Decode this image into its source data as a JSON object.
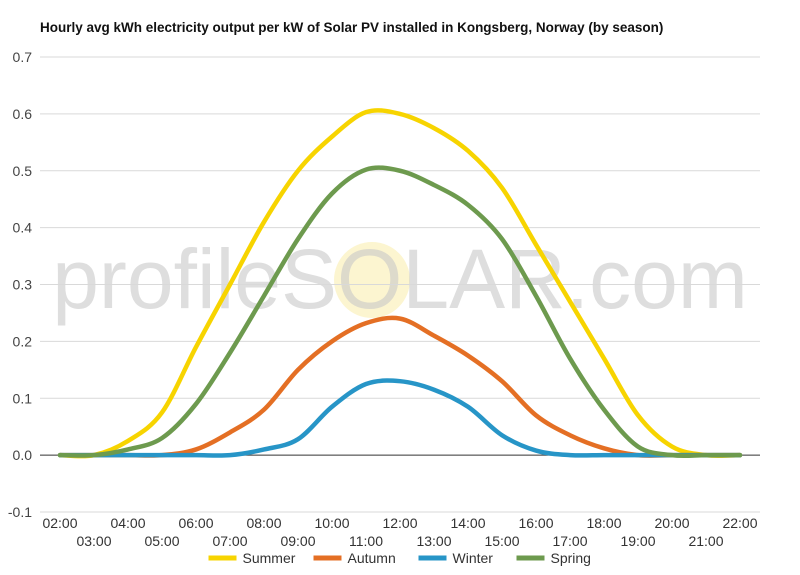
{
  "chart_data": {
    "type": "line",
    "title": "Hourly avg kWh electricity output per kW of Solar PV installed in Kongsberg, Norway (by season)",
    "watermark": "profileSOLAR.com",
    "x": [
      "02:00",
      "03:00",
      "04:00",
      "05:00",
      "06:00",
      "07:00",
      "08:00",
      "09:00",
      "10:00",
      "11:00",
      "12:00",
      "13:00",
      "14:00",
      "15:00",
      "16:00",
      "17:00",
      "18:00",
      "19:00",
      "20:00",
      "21:00",
      "22:00"
    ],
    "ylim": [
      -0.1,
      0.7
    ],
    "yticks": [
      "-0.1",
      "0.0",
      "0.1",
      "0.2",
      "0.3",
      "0.4",
      "0.5",
      "0.6",
      "0.7"
    ],
    "grid": true,
    "legend_position": "bottom",
    "series": [
      {
        "name": "Summer",
        "color": "#f7d400",
        "values": [
          0.0,
          0.0,
          0.025,
          0.075,
          0.19,
          0.3,
          0.41,
          0.5,
          0.56,
          0.603,
          0.6,
          0.575,
          0.535,
          0.47,
          0.37,
          0.27,
          0.17,
          0.07,
          0.015,
          0.0,
          0.0
        ]
      },
      {
        "name": "Autumn",
        "color": "#e46f24",
        "values": [
          0.0,
          0.0,
          0.0,
          0.0,
          0.01,
          0.04,
          0.08,
          0.15,
          0.2,
          0.232,
          0.24,
          0.21,
          0.175,
          0.13,
          0.07,
          0.035,
          0.012,
          0.0,
          0.0,
          0.0,
          0.0
        ]
      },
      {
        "name": "Winter",
        "color": "#2795c7",
        "values": [
          0.0,
          0.0,
          0.0,
          0.0,
          0.0,
          0.0,
          0.01,
          0.028,
          0.085,
          0.125,
          0.13,
          0.115,
          0.085,
          0.035,
          0.008,
          0.0,
          0.0,
          0.0,
          0.0,
          0.0,
          0.0
        ]
      },
      {
        "name": "Spring",
        "color": "#6d9a4e",
        "values": [
          0.0,
          0.0,
          0.01,
          0.03,
          0.09,
          0.18,
          0.28,
          0.38,
          0.46,
          0.502,
          0.5,
          0.475,
          0.44,
          0.38,
          0.28,
          0.17,
          0.08,
          0.015,
          0.0,
          0.0,
          0.0
        ]
      }
    ]
  }
}
